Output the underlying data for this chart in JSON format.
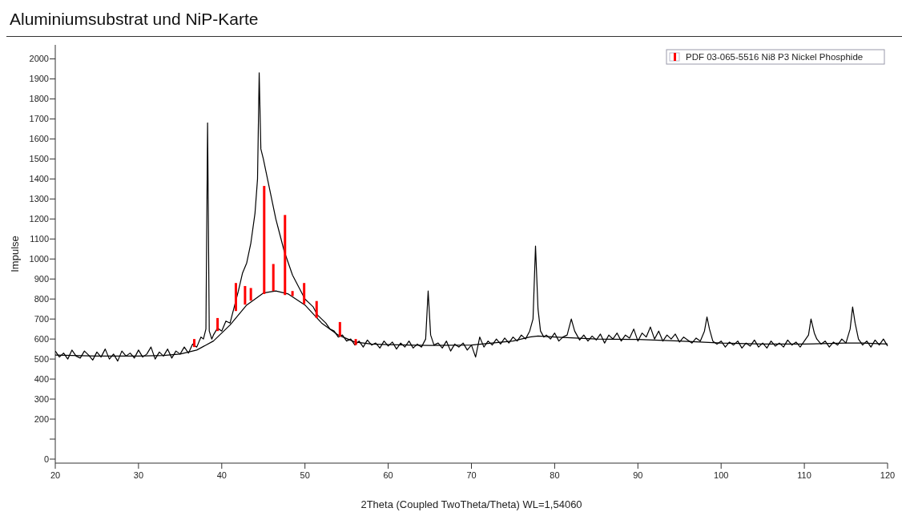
{
  "chart_data": {
    "type": "line",
    "title": "Aluminiumsubstrat und NiP-Karte",
    "xlabel": "2Theta (Coupled TwoTheta/Theta) WL=1,54060",
    "ylabel": "Impulse",
    "xlim": [
      20,
      120
    ],
    "xticks": [
      20,
      30,
      40,
      50,
      60,
      70,
      80,
      90,
      100,
      110,
      120
    ],
    "ylim": [
      -20,
      2070
    ],
    "yticks": [
      0,
      {
        "value": 100,
        "label": null
      },
      200,
      300,
      400,
      500,
      600,
      700,
      800,
      900,
      1000,
      1100,
      1200,
      1300,
      1400,
      1500,
      1600,
      1700,
      1800,
      1900,
      2000
    ],
    "grid": false,
    "legend": "top right",
    "marker": "none",
    "line_style": "solid",
    "series": [
      {
        "color": "#000000",
        "x": [
          20,
          20.5,
          21,
          21.5,
          22,
          22.5,
          23,
          23.5,
          24,
          24.5,
          25,
          25.5,
          26,
          26.5,
          27,
          27.5,
          28,
          28.5,
          29,
          29.5,
          30,
          30.5,
          31,
          31.5,
          32,
          32.5,
          33,
          33.5,
          34,
          34.5,
          35,
          35.5,
          36,
          36.5,
          37,
          37.5,
          37.8,
          38.1,
          38.3,
          38.5,
          38.8,
          39,
          39.5,
          40,
          40.5,
          41,
          41.5,
          42,
          42.5,
          43,
          43.5,
          44,
          44.3,
          44.5,
          44.7,
          45,
          45.3,
          45.6,
          46,
          46.5,
          47,
          47.5,
          48,
          48.5,
          49,
          49.5,
          50,
          50.5,
          51,
          51.5,
          52,
          52.5,
          53,
          53.5,
          54,
          54.5,
          55,
          55.5,
          56,
          56.5,
          57,
          57.5,
          58,
          58.5,
          59,
          59.5,
          60,
          60.5,
          61,
          61.5,
          62,
          62.5,
          63,
          63.5,
          64,
          64.5,
          64.8,
          65.1,
          65.5,
          66,
          66.5,
          67,
          67.5,
          68,
          68.5,
          69,
          69.5,
          70,
          70.5,
          71,
          71.5,
          72,
          72.5,
          73,
          73.5,
          74,
          74.5,
          75,
          75.5,
          76,
          76.5,
          77,
          77.4,
          77.7,
          78,
          78.3,
          78.7,
          79,
          79.5,
          80,
          80.5,
          81,
          81.5,
          82,
          82.4,
          83,
          83.5,
          84,
          84.5,
          85,
          85.5,
          86,
          86.5,
          87,
          87.5,
          88,
          88.5,
          89,
          89.5,
          90,
          90.5,
          91,
          91.5,
          92,
          92.5,
          93,
          93.5,
          94,
          94.5,
          95,
          95.5,
          96,
          96.5,
          97,
          97.5,
          98,
          98.3,
          98.6,
          99,
          99.5,
          100,
          100.5,
          101,
          101.5,
          102,
          102.5,
          103,
          103.5,
          104,
          104.5,
          105,
          105.5,
          106,
          106.5,
          107,
          107.5,
          108,
          108.5,
          109,
          109.5,
          110,
          110.5,
          110.8,
          111.2,
          111.5,
          112,
          112.5,
          113,
          113.5,
          114,
          114.5,
          115,
          115.5,
          115.8,
          116.1,
          116.5,
          117,
          117.5,
          118,
          118.5,
          119,
          119.5,
          120
        ],
        "values": [
          540,
          510,
          530,
          500,
          545,
          515,
          505,
          540,
          520,
          495,
          535,
          510,
          550,
          500,
          525,
          490,
          540,
          515,
          530,
          505,
          545,
          510,
          525,
          560,
          500,
          535,
          515,
          550,
          505,
          540,
          525,
          560,
          530,
          575,
          560,
          610,
          600,
          650,
          1680,
          640,
          600,
          620,
          655,
          640,
          690,
          680,
          760,
          840,
          930,
          980,
          1080,
          1230,
          1400,
          1930,
          1550,
          1500,
          1440,
          1380,
          1300,
          1200,
          1120,
          1040,
          980,
          920,
          880,
          840,
          800,
          780,
          760,
          720,
          700,
          680,
          650,
          640,
          610,
          620,
          590,
          600,
          570,
          590,
          560,
          595,
          570,
          580,
          555,
          590,
          565,
          585,
          550,
          580,
          560,
          590,
          555,
          575,
          560,
          600,
          840,
          620,
          570,
          580,
          555,
          590,
          540,
          575,
          560,
          580,
          545,
          570,
          510,
          610,
          560,
          590,
          570,
          600,
          575,
          605,
          580,
          610,
          590,
          620,
          600,
          640,
          700,
          1065,
          750,
          640,
          610,
          620,
          600,
          630,
          590,
          610,
          620,
          700,
          640,
          595,
          620,
          590,
          615,
          595,
          625,
          580,
          620,
          600,
          630,
          590,
          620,
          605,
          650,
          590,
          630,
          610,
          660,
          600,
          640,
          590,
          620,
          600,
          625,
          585,
          610,
          595,
          580,
          605,
          590,
          640,
          710,
          650,
          590,
          575,
          590,
          560,
          585,
          570,
          590,
          555,
          580,
          565,
          595,
          560,
          580,
          555,
          590,
          565,
          580,
          560,
          595,
          570,
          585,
          560,
          590,
          620,
          700,
          630,
          600,
          575,
          590,
          560,
          585,
          570,
          600,
          580,
          650,
          760,
          680,
          600,
          570,
          590,
          560,
          595,
          570,
          600,
          565
        ]
      },
      {
        "color": "#000000",
        "x": [
          20,
          25,
          30,
          33,
          35,
          37,
          39,
          41,
          43,
          45,
          46.5,
          48,
          50,
          52,
          54,
          56,
          58,
          60,
          65,
          70,
          75,
          77,
          78,
          80,
          85,
          90,
          95,
          100,
          105,
          110,
          115,
          117,
          120
        ],
        "values": [
          520,
          515,
          515,
          518,
          525,
          545,
          590,
          670,
          770,
          830,
          840,
          825,
          770,
          680,
          620,
          585,
          575,
          572,
          568,
          570,
          590,
          610,
          615,
          610,
          600,
          598,
          590,
          580,
          575,
          575,
          580,
          580,
          575
        ]
      },
      {
        "type": "bar",
        "name": "PDF 03-065-5516 Ni8 P3 Nickel Phosphide",
        "color": "#ff0000",
        "x": [
          36.7,
          39.5,
          41.7,
          42.8,
          43.5,
          45.1,
          46.2,
          47.6,
          48.5,
          49.9,
          51.4,
          54.2,
          56.1
        ],
        "base": [
          560,
          640,
          740,
          772,
          792,
          825,
          840,
          820,
          815,
          775,
          705,
          612,
          570
        ],
        "values": [
          40,
          65,
          140,
          93,
          63,
          540,
          135,
          400,
          25,
          105,
          85,
          73,
          30
        ]
      }
    ]
  }
}
